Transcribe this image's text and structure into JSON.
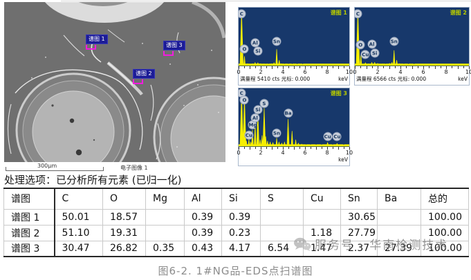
{
  "sem": {
    "scale_text": "300μm",
    "image_label": "电子图像 1",
    "markers": [
      {
        "label": "谱图 1",
        "x": 118,
        "y": 41
      },
      {
        "label": "谱图 2",
        "x": 186,
        "y": 91
      },
      {
        "label": "谱图 3",
        "x": 230,
        "y": 50
      }
    ]
  },
  "options_line": "处理选项：已分析所有元素 (已归一化)",
  "table": {
    "headers": [
      "谱图",
      "C",
      "O",
      "Mg",
      "Al",
      "Si",
      "S",
      "Cu",
      "Sn",
      "Ba",
      "总的"
    ],
    "rows": [
      [
        "谱图 1",
        "50.01",
        "18.57",
        "",
        "0.39",
        "0.39",
        "",
        "",
        "30.65",
        "",
        "100.00"
      ],
      [
        "谱图 2",
        "51.10",
        "19.31",
        "",
        "0.39",
        "0.23",
        "",
        "1.18",
        "27.79",
        "",
        "100.00"
      ],
      [
        "谱图 3",
        "30.47",
        "26.82",
        "0.35",
        "0.43",
        "4.17",
        "6.54",
        "1.47",
        "2.37",
        "27.39",
        "100.00"
      ]
    ]
  },
  "watermark": {
    "icon": "wechat-icon",
    "text": "服务号 · 华南检测技术"
  },
  "caption": "图6-2. 1#NG品-EDS点扫谱图",
  "colors": {
    "spectrum_bg": "#17386b",
    "spectrum_fill": "#f7ef00",
    "panel_title": "#b8cb00",
    "marker_box": "#1c1c96",
    "marker_accent": "#f21ae0",
    "watermark": "#8c8c8c"
  },
  "chart_data": [
    {
      "type": "area",
      "title": "谱图 1",
      "xlabel": "keV",
      "xlim": [
        0,
        10
      ],
      "x_ticks": [
        0,
        2,
        4,
        6,
        8,
        10
      ],
      "full_scale": "满量程 5410 cts 光标: 0.000",
      "full_scale_cts": 5410,
      "peaks_keV_relheight": [
        [
          0.27,
          1.0
        ],
        [
          0.53,
          0.17
        ],
        [
          0.8,
          0.035
        ],
        [
          1.05,
          0.03
        ],
        [
          1.3,
          0.035
        ],
        [
          1.49,
          0.055
        ],
        [
          1.74,
          0.05
        ],
        [
          1.95,
          0.035
        ],
        [
          2.15,
          0.03
        ],
        [
          2.45,
          0.028
        ],
        [
          2.7,
          0.025
        ],
        [
          3.0,
          0.035
        ],
        [
          3.2,
          0.05
        ],
        [
          3.44,
          0.3
        ],
        [
          3.67,
          0.1
        ],
        [
          3.85,
          0.035
        ],
        [
          4.15,
          0.025
        ],
        [
          4.5,
          0.022
        ],
        [
          4.85,
          0.018
        ],
        [
          5.3,
          0.012
        ],
        [
          5.8,
          0.008
        ]
      ],
      "labels": [
        [
          "C",
          0.27,
          0.1
        ],
        [
          "O",
          0.53,
          0.71
        ],
        [
          "Al",
          1.49,
          0.6
        ],
        [
          "Si",
          1.74,
          0.74
        ],
        [
          "Sn",
          3.44,
          0.58
        ]
      ]
    },
    {
      "type": "area",
      "title": "谱图 2",
      "xlabel": "keV",
      "xlim": [
        0,
        10
      ],
      "x_ticks": [
        0,
        2,
        4,
        6,
        8,
        10
      ],
      "full_scale": "满量程 6566 cts 光标: 0.000",
      "full_scale_cts": 6566,
      "peaks_keV_relheight": [
        [
          0.27,
          1.0
        ],
        [
          0.53,
          0.2
        ],
        [
          0.93,
          0.05
        ],
        [
          1.2,
          0.035
        ],
        [
          1.49,
          0.06
        ],
        [
          1.74,
          0.06
        ],
        [
          2.0,
          0.04
        ],
        [
          2.3,
          0.03
        ],
        [
          2.7,
          0.025
        ],
        [
          3.05,
          0.04
        ],
        [
          3.25,
          0.06
        ],
        [
          3.44,
          0.28
        ],
        [
          3.67,
          0.1
        ],
        [
          3.9,
          0.035
        ],
        [
          4.3,
          0.025
        ],
        [
          4.7,
          0.02
        ],
        [
          5.2,
          0.012
        ]
      ],
      "labels": [
        [
          "C",
          0.27,
          0.1
        ],
        [
          "O",
          0.5,
          0.64
        ],
        [
          "Cu",
          0.93,
          0.8
        ],
        [
          "Al",
          1.49,
          0.62
        ],
        [
          "Si",
          1.74,
          0.78
        ],
        [
          "Sn",
          3.44,
          0.58
        ]
      ]
    },
    {
      "type": "area",
      "title": "谱图 3",
      "xlabel": "keV",
      "xlim": [
        0,
        10
      ],
      "x_ticks": [
        0,
        2,
        4,
        6,
        8,
        10
      ],
      "full_scale": "",
      "full_scale_cts": null,
      "peaks_keV_relheight": [
        [
          0.27,
          1.0
        ],
        [
          0.53,
          0.9
        ],
        [
          0.7,
          0.1
        ],
        [
          0.93,
          0.13
        ],
        [
          1.1,
          0.08
        ],
        [
          1.25,
          0.3
        ],
        [
          1.49,
          0.4
        ],
        [
          1.74,
          0.62
        ],
        [
          1.95,
          0.12
        ],
        [
          2.12,
          0.2
        ],
        [
          2.31,
          0.7
        ],
        [
          2.45,
          0.18
        ],
        [
          2.62,
          0.1
        ],
        [
          2.85,
          0.08
        ],
        [
          3.1,
          0.07
        ],
        [
          3.44,
          0.15
        ],
        [
          3.65,
          0.08
        ],
        [
          3.9,
          0.06
        ],
        [
          4.15,
          0.08
        ],
        [
          4.47,
          0.5
        ],
        [
          4.83,
          0.28
        ],
        [
          5.16,
          0.12
        ],
        [
          5.4,
          0.06
        ],
        [
          5.7,
          0.04
        ],
        [
          6.1,
          0.025
        ],
        [
          6.5,
          0.02
        ],
        [
          7.0,
          0.015
        ],
        [
          7.5,
          0.012
        ],
        [
          8.04,
          0.07
        ],
        [
          8.5,
          0.012
        ],
        [
          8.9,
          0.05
        ],
        [
          9.5,
          0.008
        ]
      ],
      "labels": [
        [
          "C",
          0.27,
          0.08
        ],
        [
          "O",
          0.53,
          0.2
        ],
        [
          "Cu",
          0.93,
          0.8
        ],
        [
          "Mg",
          1.25,
          0.62
        ],
        [
          "Al",
          1.49,
          0.5
        ],
        [
          "Si",
          1.74,
          0.37
        ],
        [
          "S",
          2.31,
          0.26
        ],
        [
          "Sn",
          3.44,
          0.76
        ],
        [
          "Ba",
          4.47,
          0.42
        ],
        [
          "Cu",
          8.04,
          0.82
        ],
        [
          "Cu",
          8.9,
          0.82
        ]
      ]
    }
  ]
}
